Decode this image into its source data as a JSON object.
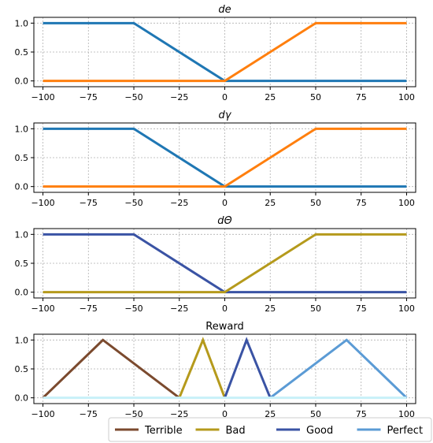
{
  "chart_data": [
    {
      "type": "line",
      "title": "de",
      "title_style": "italic",
      "xlim": [
        -105,
        105
      ],
      "ylim": [
        -0.1,
        1.1
      ],
      "xticks": [
        -100,
        -75,
        -50,
        -25,
        0,
        25,
        50,
        75,
        100
      ],
      "yticks": [
        0.0,
        0.5,
        1.0
      ],
      "grid": "on",
      "series": [
        {
          "color": "#1f77b4",
          "x": [
            -100,
            -50,
            0,
            100
          ],
          "y": [
            1,
            1,
            0,
            0
          ]
        },
        {
          "color": "#ff7f0e",
          "x": [
            -100,
            0,
            50,
            100
          ],
          "y": [
            0,
            0,
            1,
            1
          ]
        }
      ]
    },
    {
      "type": "line",
      "title": "dγ",
      "title_style": "italic",
      "xlim": [
        -105,
        105
      ],
      "ylim": [
        -0.1,
        1.1
      ],
      "xticks": [
        -100,
        -75,
        -50,
        -25,
        0,
        25,
        50,
        75,
        100
      ],
      "yticks": [
        0.0,
        0.5,
        1.0
      ],
      "grid": "on",
      "series": [
        {
          "color": "#1f77b4",
          "x": [
            -100,
            -50,
            0,
            100
          ],
          "y": [
            1,
            1,
            0,
            0
          ]
        },
        {
          "color": "#ff7f0e",
          "x": [
            -100,
            0,
            50,
            100
          ],
          "y": [
            0,
            0,
            1,
            1
          ]
        }
      ]
    },
    {
      "type": "line",
      "title": "dΘ",
      "title_style": "italic",
      "xlim": [
        -105,
        105
      ],
      "ylim": [
        -0.1,
        1.1
      ],
      "xticks": [
        -100,
        -75,
        -50,
        -25,
        0,
        25,
        50,
        75,
        100
      ],
      "yticks": [
        0.0,
        0.5,
        1.0
      ],
      "grid": "on",
      "series": [
        {
          "color": "#3a53a4",
          "x": [
            -100,
            -50,
            0,
            100
          ],
          "y": [
            1,
            1,
            0,
            0
          ]
        },
        {
          "color": "#b59a1c",
          "x": [
            -100,
            0,
            50,
            100
          ],
          "y": [
            0,
            0,
            1,
            1
          ]
        }
      ]
    },
    {
      "type": "line",
      "title": "Reward",
      "title_style": "normal",
      "xlim": [
        -105,
        105
      ],
      "ylim": [
        -0.1,
        1.1
      ],
      "xticks": [
        -100,
        -75,
        -50,
        -25,
        0,
        25,
        50,
        75,
        100
      ],
      "yticks": [
        0.0,
        0.5,
        1.0
      ],
      "grid": "on",
      "legend": "bottom",
      "series": [
        {
          "name": "Terrible",
          "color": "#7b4a2e",
          "x": [
            -100,
            -67,
            -25
          ],
          "y": [
            0,
            1,
            0
          ]
        },
        {
          "name": "Bad",
          "color": "#b59a1c",
          "x": [
            -25,
            -12,
            0
          ],
          "y": [
            0,
            1,
            0
          ]
        },
        {
          "name": "Good",
          "color": "#3a53a4",
          "x": [
            0,
            12,
            25
          ],
          "y": [
            0,
            1,
            0
          ]
        },
        {
          "name": "Perfect",
          "color": "#5b9bd5",
          "x": [
            25,
            67,
            100
          ],
          "y": [
            0,
            1,
            0
          ]
        },
        {
          "color": "#c8f0f8",
          "x": [
            -100,
            100
          ],
          "y": [
            0,
            0
          ]
        }
      ]
    }
  ]
}
